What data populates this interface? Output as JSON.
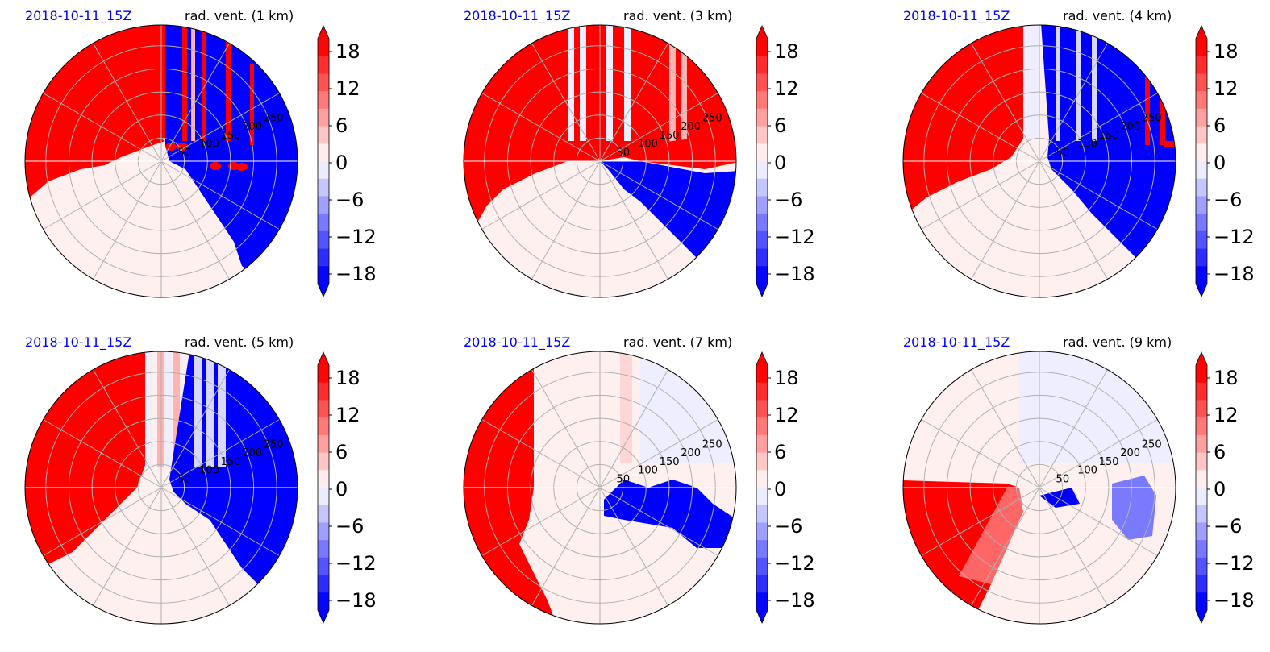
{
  "colors": {
    "positive": "#ff0000",
    "negative": "#0000ff",
    "neutral": "#fff0f0",
    "date_text": "#0000ff",
    "grid": "#b0b0b0"
  },
  "chart_data": [
    {
      "type": "heatmap",
      "projection": "polar",
      "date_label": "2018-10-11_15Z",
      "title": "rad. vent. (1 km)",
      "range_ticks": [
        "50",
        "100",
        "150",
        "200",
        "250"
      ],
      "colorbar": {
        "ticks": [
          "18",
          "12",
          "6",
          "0",
          "−6",
          "−12",
          "−18"
        ],
        "vmin": -21,
        "vmax": 21,
        "extend": "both",
        "colormap": "bwr"
      },
      "regions": [
        {
          "sign": "positive",
          "description_key": "north-west sector"
        },
        {
          "sign": "negative",
          "description_key": "east sector"
        },
        {
          "sign": "neutral",
          "description_key": "south-west sector"
        }
      ]
    },
    {
      "type": "heatmap",
      "projection": "polar",
      "date_label": "2018-10-11_15Z",
      "title": "rad. vent. (3 km)",
      "range_ticks": [
        "50",
        "100",
        "150",
        "200",
        "250"
      ],
      "colorbar": {
        "ticks": [
          "18",
          "12",
          "6",
          "0",
          "−6",
          "−12",
          "−18"
        ],
        "vmin": -21,
        "vmax": 21,
        "extend": "both",
        "colormap": "bwr"
      },
      "regions": [
        {
          "sign": "positive"
        },
        {
          "sign": "negative"
        },
        {
          "sign": "neutral"
        }
      ]
    },
    {
      "type": "heatmap",
      "projection": "polar",
      "date_label": "2018-10-11_15Z",
      "title": "rad. vent. (4 km)",
      "range_ticks": [
        "50",
        "100",
        "150",
        "200",
        "250"
      ],
      "colorbar": {
        "ticks": [
          "18",
          "12",
          "6",
          "0",
          "−6",
          "−12",
          "−18"
        ],
        "vmin": -21,
        "vmax": 21,
        "extend": "both",
        "colormap": "bwr"
      },
      "regions": [
        {
          "sign": "positive"
        },
        {
          "sign": "negative"
        },
        {
          "sign": "neutral"
        }
      ]
    },
    {
      "type": "heatmap",
      "projection": "polar",
      "date_label": "2018-10-11_15Z",
      "title": "rad. vent. (5 km)",
      "range_ticks": [
        "50",
        "100",
        "150",
        "200",
        "250"
      ],
      "colorbar": {
        "ticks": [
          "18",
          "12",
          "6",
          "0",
          "−6",
          "−12",
          "−18"
        ],
        "vmin": -21,
        "vmax": 21,
        "extend": "both",
        "colormap": "bwr"
      },
      "regions": [
        {
          "sign": "positive"
        },
        {
          "sign": "negative"
        },
        {
          "sign": "neutral"
        }
      ]
    },
    {
      "type": "heatmap",
      "projection": "polar",
      "date_label": "2018-10-11_15Z",
      "title": "rad. vent. (7 km)",
      "range_ticks": [
        "50",
        "100",
        "150",
        "200",
        "250"
      ],
      "colorbar": {
        "ticks": [
          "18",
          "12",
          "6",
          "0",
          "−6",
          "−12",
          "−18"
        ],
        "vmin": -21,
        "vmax": 21,
        "extend": "both",
        "colormap": "bwr"
      },
      "regions": [
        {
          "sign": "positive"
        },
        {
          "sign": "negative"
        },
        {
          "sign": "neutral"
        }
      ]
    },
    {
      "type": "heatmap",
      "projection": "polar",
      "date_label": "2018-10-11_15Z",
      "title": "rad. vent. (9 km)",
      "range_ticks": [
        "50",
        "100",
        "150",
        "200",
        "250"
      ],
      "colorbar": {
        "ticks": [
          "18",
          "12",
          "6",
          "0",
          "−6",
          "−12",
          "−18"
        ],
        "vmin": -21,
        "vmax": 21,
        "extend": "both",
        "colormap": "bwr"
      },
      "regions": [
        {
          "sign": "positive"
        },
        {
          "sign": "negative"
        },
        {
          "sign": "neutral"
        }
      ]
    }
  ]
}
